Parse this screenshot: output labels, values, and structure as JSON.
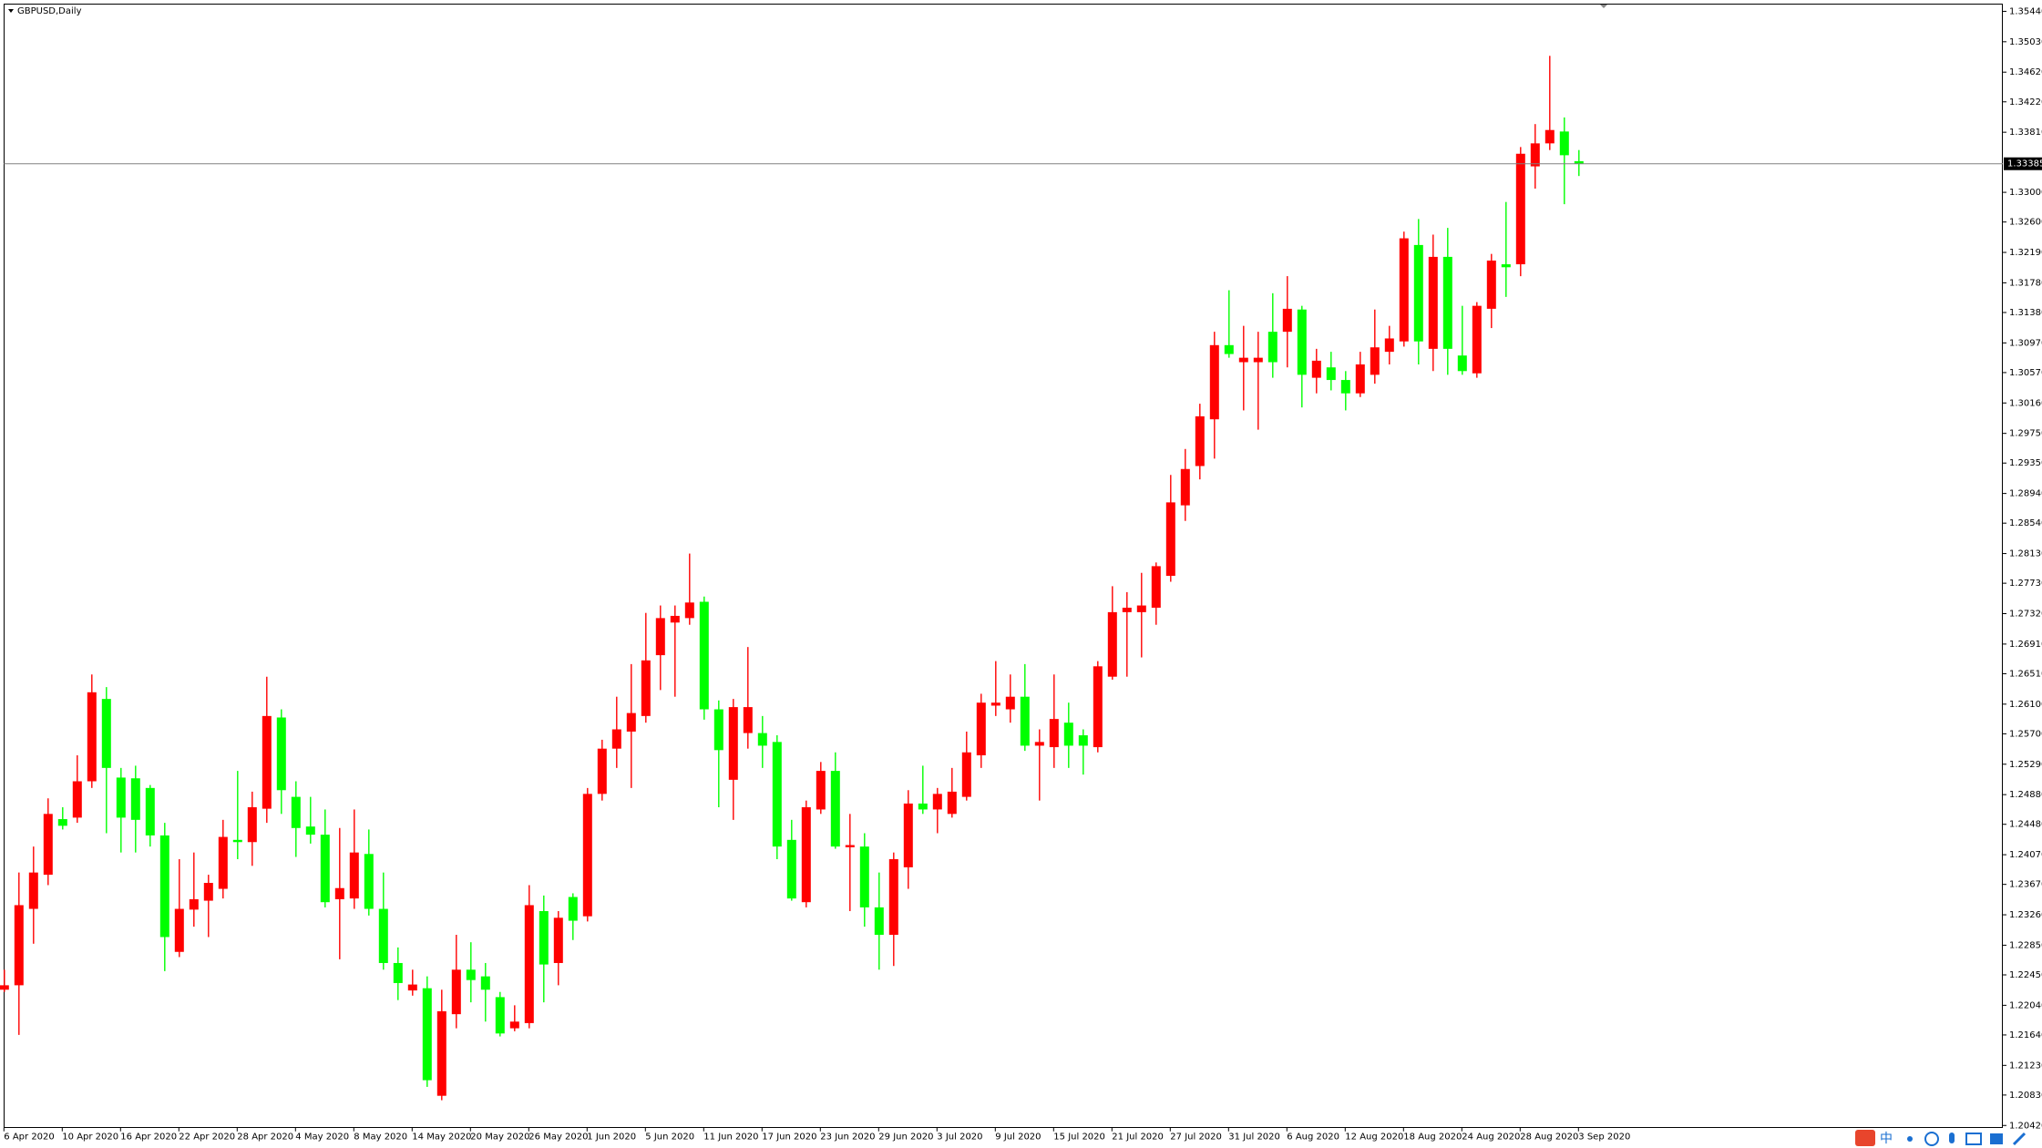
{
  "chart_data": {
    "type": "candlestick",
    "title": "GBPUSD,Daily",
    "x": [
      "6 Apr 2020",
      null,
      null,
      null,
      "10 Apr 2020",
      null,
      null,
      null,
      "16 Apr 2020",
      null,
      null,
      null,
      "22 Apr 2020",
      null,
      null,
      null,
      "28 Apr 2020",
      null,
      null,
      null,
      "4 May 2020",
      null,
      null,
      null,
      "8 May 2020",
      null,
      null,
      null,
      "14 May 2020",
      null,
      null,
      null,
      "20 May 2020",
      null,
      null,
      null,
      "26 May 2020",
      null,
      null,
      null,
      "1 Jun 2020",
      null,
      null,
      null,
      "5 Jun 2020",
      null,
      null,
      null,
      "11 Jun 2020",
      null,
      null,
      null,
      "17 Jun 2020",
      null,
      null,
      null,
      "23 Jun 2020",
      null,
      null,
      null,
      "29 Jun 2020",
      null,
      null,
      null,
      "3 Jul 2020",
      null,
      null,
      null,
      "9 Jul 2020",
      null,
      null,
      null,
      "15 Jul 2020",
      null,
      null,
      null,
      "21 Jul 2020",
      null,
      null,
      null,
      "27 Jul 2020",
      null,
      null,
      null,
      "31 Jul 2020",
      null,
      null,
      null,
      "6 Aug 2020",
      null,
      null,
      null,
      "12 Aug 2020",
      null,
      null,
      null,
      "18 Aug 2020",
      null,
      null,
      null,
      "24 Aug 2020",
      null,
      null,
      null,
      "28 Aug 2020",
      null,
      null,
      null,
      "3 Sep 2020"
    ],
    "open": [
      1.2225,
      1.2231,
      1.2334,
      1.238,
      1.2455,
      1.2457,
      1.2506,
      1.2617,
      1.2511,
      1.251,
      1.2497,
      1.2433,
      1.2276,
      1.2333,
      1.2345,
      1.2361,
      1.2427,
      1.2424,
      1.2469,
      1.2592,
      1.2485,
      1.2445,
      1.2434,
      1.2347,
      1.2348,
      1.2408,
      1.2334,
      1.2261,
      1.2224,
      1.2227,
      1.2082,
      1.2192,
      1.2252,
      1.2243,
      1.2215,
      1.2173,
      1.218,
      1.2331,
      1.2261,
      1.235,
      1.2324,
      1.2489,
      1.255,
      1.2573,
      1.2594,
      1.2676,
      1.272,
      1.2726,
      1.2748,
      1.2603,
      1.2508,
      1.2571,
      1.2571,
      1.2559,
      1.2427,
      1.2343,
      1.2468,
      1.252,
      1.2417,
      1.2418,
      1.2336,
      1.2299,
      1.239,
      1.2476,
      1.2468,
      1.2462,
      1.2485,
      1.2541,
      1.2608,
      1.2603,
      1.262,
      1.2554,
      1.2552,
      1.2585,
      1.2568,
      1.2552,
      1.2647,
      1.2734,
      1.2734,
      1.274,
      1.2783,
      1.2878,
      1.2931,
      1.2994,
      1.3094,
      1.3071,
      1.3071,
      1.3112,
      1.3112,
      1.3142,
      1.305,
      1.3064,
      1.3047,
      1.3029,
      1.3054,
      1.3085,
      1.3099,
      1.3229,
      1.3089,
      1.3213,
      1.308,
      1.3056,
      1.3143,
      1.3203,
      1.3203,
      1.3335,
      1.3366,
      1.3382,
      1.3342
    ],
    "high": [
      1.2252,
      1.2383,
      1.2418,
      1.2483,
      1.2471,
      1.2541,
      1.265,
      1.2633,
      1.2524,
      1.2527,
      1.2501,
      1.245,
      1.2401,
      1.241,
      1.238,
      1.2454,
      1.252,
      1.2492,
      1.2647,
      1.2603,
      1.2506,
      1.2485,
      1.2468,
      1.2443,
      1.2468,
      1.2441,
      1.2383,
      1.2282,
      1.2252,
      1.2243,
      1.2225,
      1.2299,
      1.2289,
      1.2261,
      1.2222,
      1.2204,
      1.2366,
      1.2352,
      1.2331,
      1.2355,
      1.2497,
      1.2562,
      1.262,
      1.2664,
      1.2733,
      1.2743,
      1.2743,
      1.2813,
      1.2755,
      1.2615,
      1.2617,
      1.2687,
      1.2594,
      1.2568,
      1.2454,
      1.248,
      1.2532,
      1.2545,
      1.2462,
      1.2436,
      1.2383,
      1.241,
      1.2494,
      1.2527,
      1.2497,
      1.2524,
      1.2573,
      1.2624,
      1.2668,
      1.265,
      1.2664,
      1.2576,
      1.265,
      1.2612,
      1.2576,
      1.2668,
      1.2769,
      1.2761,
      1.2787,
      1.2801,
      1.2919,
      1.2954,
      1.3015,
      1.3112,
      1.3168,
      1.312,
      1.3112,
      1.3164,
      1.3187,
      1.3147,
      1.3089,
      1.3085,
      1.3059,
      1.3085,
      1.3142,
      1.312,
      1.3247,
      1.3264,
      1.3243,
      1.3252,
      1.3147,
      1.3152,
      1.3217,
      1.3287,
      1.3361,
      1.3392,
      1.3484,
      1.3401,
      1.3357
    ],
    "low": [
      1.2222,
      1.2164,
      1.2287,
      1.2366,
      1.2441,
      1.245,
      1.2497,
      1.2436,
      1.241,
      1.241,
      1.2418,
      1.225,
      1.2269,
      1.231,
      1.2296,
      1.2348,
      1.2401,
      1.2392,
      1.245,
      1.2462,
      1.2404,
      1.2422,
      1.2336,
      1.2266,
      1.2334,
      1.2325,
      1.2252,
      1.2211,
      1.2217,
      1.2094,
      1.2076,
      1.2173,
      1.2208,
      1.2182,
      1.2162,
      1.2169,
      1.2173,
      1.2208,
      1.2231,
      1.2292,
      1.2317,
      1.248,
      1.2524,
      1.2497,
      1.2585,
      1.2629,
      1.262,
      1.2717,
      1.2589,
      1.2471,
      1.2454,
      1.255,
      1.2524,
      1.2401,
      1.2345,
      1.2336,
      1.2462,
      1.2415,
      1.2331,
      1.231,
      1.2252,
      1.2257,
      1.2361,
      1.2462,
      1.2436,
      1.2457,
      1.248,
      1.2524,
      1.2594,
      1.2585,
      1.2547,
      1.248,
      1.2524,
      1.2524,
      1.2515,
      1.2545,
      1.2643,
      1.2647,
      1.2673,
      1.2717,
      1.2775,
      1.2857,
      1.2913,
      1.2941,
      1.3077,
      1.3006,
      1.298,
      1.305,
      1.3064,
      1.301,
      1.3029,
      1.3033,
      1.3006,
      1.3024,
      1.3042,
      1.3068,
      1.3092,
      1.3068,
      1.3059,
      1.3054,
      1.3054,
      1.305,
      1.3117,
      1.3159,
      1.3187,
      1.3305,
      1.3357,
      1.3284,
      1.3322
    ],
    "close": [
      1.2231,
      1.2339,
      1.2383,
      1.2462,
      1.2446,
      1.2506,
      1.2626,
      1.2524,
      1.2457,
      1.2454,
      1.2433,
      1.2296,
      1.2334,
      1.2347,
      1.2369,
      1.2431,
      1.2424,
      1.2471,
      1.2594,
      1.2494,
      1.2443,
      1.2434,
      1.2343,
      1.2362,
      1.241,
      1.2334,
      1.2261,
      1.2234,
      1.2232,
      1.2103,
      1.2196,
      1.2252,
      1.2238,
      1.2225,
      1.2166,
      1.2182,
      1.2339,
      1.2259,
      1.2322,
      1.2318,
      1.2489,
      1.255,
      1.2576,
      1.2598,
      1.2669,
      1.2726,
      1.2729,
      1.2747,
      1.2603,
      1.2548,
      1.2606,
      1.2606,
      1.2554,
      1.2418,
      1.2348,
      1.2471,
      1.252,
      1.2418,
      1.242,
      1.2336,
      1.2299,
      1.2401,
      1.2476,
      1.2468,
      1.2489,
      1.2492,
      1.2545,
      1.2612,
      1.2612,
      1.262,
      1.2554,
      1.2559,
      1.259,
      1.2554,
      1.2554,
      1.2661,
      1.2734,
      1.274,
      1.2743,
      1.2796,
      1.2882,
      1.2927,
      1.2998,
      1.3094,
      1.3082,
      1.3077,
      1.3077,
      1.3071,
      1.3143,
      1.3054,
      1.3073,
      1.3047,
      1.3029,
      1.3068,
      1.3091,
      1.3103,
      1.3238,
      1.3099,
      1.3213,
      1.3089,
      1.3059,
      1.3147,
      1.3208,
      1.3199,
      1.3352,
      1.3366,
      1.3384,
      1.335,
      1.33385
    ],
    "up_color": "#ff0000",
    "down_color": "#00ff00",
    "ylim": [
      1.2039,
      1.3554
    ],
    "yticks": [
      {
        "value": 1.3544,
        "label": "1.35440"
      },
      {
        "value": 1.3503,
        "label": "1.35030"
      },
      {
        "value": 1.3462,
        "label": "1.34620"
      },
      {
        "value": 1.3422,
        "label": "1.34220"
      },
      {
        "value": 1.3381,
        "label": "1.33810"
      },
      {
        "value": 1.33,
        "label": "1.33000"
      },
      {
        "value": 1.326,
        "label": "1.32600"
      },
      {
        "value": 1.3219,
        "label": "1.32190"
      },
      {
        "value": 1.3178,
        "label": "1.31780"
      },
      {
        "value": 1.3138,
        "label": "1.31380"
      },
      {
        "value": 1.3097,
        "label": "1.30970"
      },
      {
        "value": 1.3057,
        "label": "1.30570"
      },
      {
        "value": 1.3016,
        "label": "1.30160"
      },
      {
        "value": 1.2975,
        "label": "1.29750"
      },
      {
        "value": 1.2935,
        "label": "1.29350"
      },
      {
        "value": 1.2894,
        "label": "1.28940"
      },
      {
        "value": 1.2854,
        "label": "1.28540"
      },
      {
        "value": 1.2813,
        "label": "1.28130"
      },
      {
        "value": 1.2773,
        "label": "1.27730"
      },
      {
        "value": 1.2732,
        "label": "1.27320"
      },
      {
        "value": 1.2691,
        "label": "1.26910"
      },
      {
        "value": 1.2651,
        "label": "1.26510"
      },
      {
        "value": 1.261,
        "label": "1.26100"
      },
      {
        "value": 1.257,
        "label": "1.25700"
      },
      {
        "value": 1.2529,
        "label": "1.25290"
      },
      {
        "value": 1.2488,
        "label": "1.24880"
      },
      {
        "value": 1.2448,
        "label": "1.24480"
      },
      {
        "value": 1.2407,
        "label": "1.24070"
      },
      {
        "value": 1.2367,
        "label": "1.23670"
      },
      {
        "value": 1.2326,
        "label": "1.23260"
      },
      {
        "value": 1.2285,
        "label": "1.22850"
      },
      {
        "value": 1.2245,
        "label": "1.22450"
      },
      {
        "value": 1.2204,
        "label": "1.22040"
      },
      {
        "value": 1.2164,
        "label": "1.21640"
      },
      {
        "value": 1.2123,
        "label": "1.21230"
      },
      {
        "value": 1.2083,
        "label": "1.20830"
      },
      {
        "value": 1.2042,
        "label": "1.20420"
      }
    ],
    "bid": {
      "value": 1.33385,
      "label": "1.33385"
    },
    "grid": false
  },
  "ime_label": "中"
}
